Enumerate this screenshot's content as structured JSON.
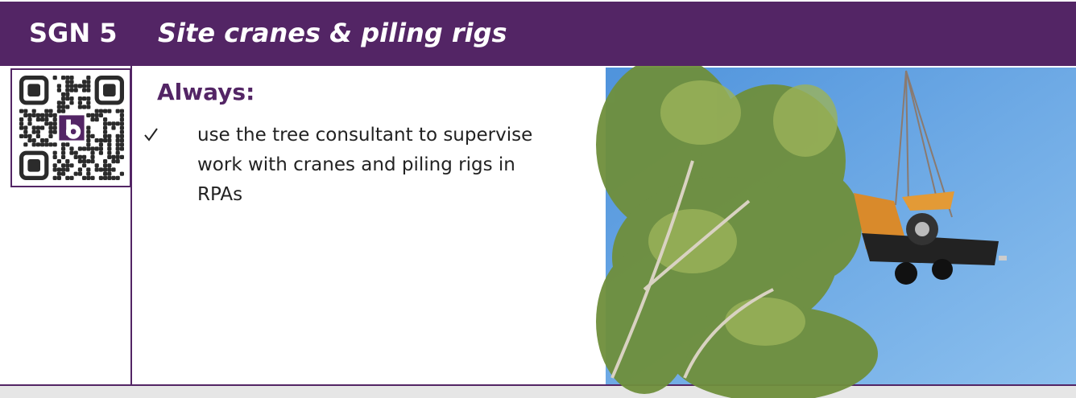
{
  "header": {
    "code": "SGN 5",
    "title": "Site cranes & piling rigs"
  },
  "content": {
    "heading": "Always:",
    "items": [
      "use the tree consultant to supervise work with cranes and piling rigs in RPAs"
    ]
  }
}
